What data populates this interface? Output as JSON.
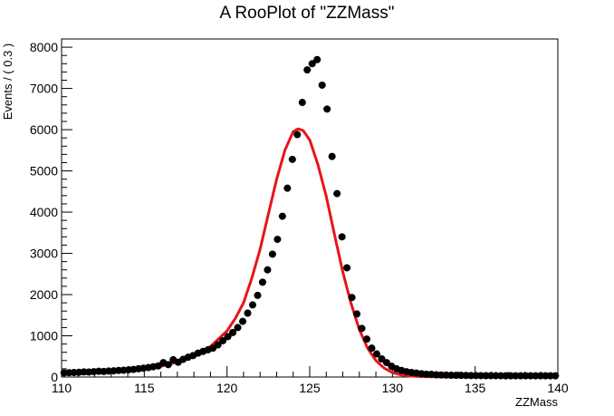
{
  "chart_data": {
    "type": "scatter",
    "title": "A RooPlot of \"ZZMass\"",
    "xlabel": "ZZMass",
    "ylabel": "Events / ( 0.3 )",
    "xlim": [
      110,
      140
    ],
    "ylim": [
      0,
      8200
    ],
    "x_ticks": [
      "110",
      "115",
      "120",
      "125",
      "130",
      "135",
      "140"
    ],
    "y_ticks": [
      "0",
      "1000",
      "2000",
      "3000",
      "4000",
      "5000",
      "6000",
      "7000",
      "8000"
    ],
    "grid": false,
    "colors": {
      "points": "#000000",
      "fit_curve": "#e8141b"
    },
    "series": [
      {
        "kind": "points",
        "x": [
          110.15,
          110.45,
          110.75,
          111.05,
          111.35,
          111.65,
          111.95,
          112.25,
          112.55,
          112.85,
          113.15,
          113.45,
          113.75,
          114.05,
          114.35,
          114.65,
          114.95,
          115.25,
          115.55,
          115.85,
          116.15,
          116.45,
          116.75,
          117.05,
          117.35,
          117.65,
          117.95,
          118.25,
          118.55,
          118.85,
          119.15,
          119.45,
          119.75,
          120.05,
          120.35,
          120.65,
          120.95,
          121.25,
          121.55,
          121.85,
          122.15,
          122.45,
          122.75,
          123.05,
          123.35,
          123.65,
          123.95,
          124.25,
          124.55,
          124.85,
          125.15,
          125.45,
          125.75,
          126.05,
          126.35,
          126.65,
          126.95,
          127.25,
          127.55,
          127.85,
          128.15,
          128.45,
          128.75,
          129.05,
          129.35,
          129.65,
          129.95,
          130.25,
          130.55,
          130.85,
          131.15,
          131.45,
          131.75,
          132.05,
          132.35,
          132.65,
          132.95,
          133.25,
          133.55,
          133.85,
          134.15,
          134.45,
          134.75,
          135.05,
          135.35,
          135.65,
          135.95,
          136.25,
          136.55,
          136.85,
          137.15,
          137.45,
          137.75,
          138.05,
          138.35,
          138.65,
          138.95,
          139.25,
          139.55,
          139.85
        ],
        "y": [
          100,
          105,
          110,
          115,
          125,
          120,
          130,
          140,
          135,
          145,
          150,
          160,
          165,
          175,
          185,
          200,
          215,
          230,
          250,
          270,
          350,
          300,
          420,
          360,
          430,
          480,
          520,
          580,
          620,
          660,
          700,
          780,
          880,
          980,
          1080,
          1200,
          1350,
          1550,
          1750,
          1980,
          2300,
          2600,
          2980,
          3340,
          3900,
          4580,
          5280,
          5880,
          6660,
          7450,
          7600,
          7700,
          7080,
          6500,
          5350,
          4450,
          3400,
          2650,
          1930,
          1530,
          1180,
          920,
          700,
          560,
          440,
          350,
          260,
          200,
          160,
          130,
          110,
          95,
          80,
          70,
          65,
          55,
          50,
          48,
          44,
          42,
          40,
          38,
          36,
          35,
          34,
          33,
          32,
          32,
          31,
          30,
          30,
          30,
          30,
          30,
          30,
          30,
          30,
          30,
          30,
          30
        ]
      },
      {
        "kind": "curve",
        "x": [
          110,
          111,
          112,
          113,
          114,
          115,
          116,
          117,
          118,
          119,
          120,
          120.5,
          121,
          121.5,
          122,
          122.5,
          123,
          123.5,
          124,
          124.3,
          124.6,
          125,
          125.5,
          126,
          126.5,
          127,
          127.5,
          128,
          128.5,
          129,
          129.5,
          130,
          130.5,
          131,
          132,
          133,
          134,
          135,
          136,
          137,
          138,
          139,
          140
        ],
        "y": [
          60,
          75,
          95,
          120,
          150,
          195,
          260,
          360,
          500,
          740,
          1120,
          1420,
          1800,
          2400,
          3100,
          3950,
          4800,
          5500,
          5950,
          6020,
          5980,
          5750,
          5150,
          4380,
          3450,
          2550,
          1780,
          1150,
          700,
          400,
          215,
          110,
          55,
          25,
          8,
          3,
          1,
          0,
          0,
          0,
          0,
          0,
          0
        ]
      }
    ]
  }
}
